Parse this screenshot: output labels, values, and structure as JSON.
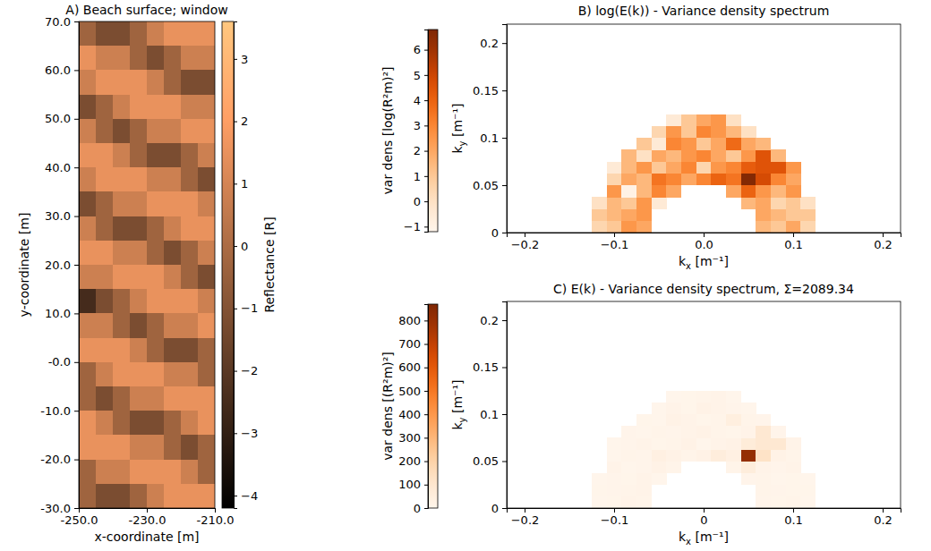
{
  "chart_data": [
    {
      "type": "heatmap",
      "title": "A) Beach surface; window",
      "x_label": "x-coordinate [m]",
      "y_label": "y-coordinate [m]",
      "x_edges": [
        -250,
        -245,
        -240,
        -235,
        -230,
        -225,
        -220,
        -215,
        -210
      ],
      "y_edges": [
        70,
        65,
        60,
        55,
        50,
        45,
        40,
        35,
        30,
        25,
        20,
        15,
        10,
        5,
        0,
        -5,
        -10,
        -15,
        -20,
        -25,
        -30
      ],
      "values": [
        [
          -0.3,
          -1.2,
          -1.2,
          -0.3,
          0.8,
          1.5,
          1.5,
          1.5
        ],
        [
          1.5,
          0.8,
          0.8,
          -0.3,
          -1.2,
          -0.3,
          0.8,
          0.8
        ],
        [
          0.8,
          1.5,
          1.5,
          1.5,
          0.8,
          -0.3,
          -1.2,
          -1.2
        ],
        [
          -1.2,
          -0.3,
          0.8,
          1.5,
          1.5,
          1.5,
          0.8,
          0.8
        ],
        [
          0.8,
          -0.3,
          -1.2,
          -0.3,
          0.8,
          0.8,
          1.5,
          1.5
        ],
        [
          1.5,
          1.5,
          0.8,
          -0.3,
          -1.2,
          -1.2,
          -0.3,
          0.8
        ],
        [
          0.8,
          1.5,
          1.5,
          1.5,
          0.8,
          0.8,
          -0.3,
          -1.2
        ],
        [
          -1.2,
          -0.3,
          0.8,
          0.8,
          1.5,
          1.5,
          1.5,
          0.8
        ],
        [
          0.8,
          -0.3,
          -1.2,
          -1.2,
          -0.3,
          0.8,
          1.5,
          1.5
        ],
        [
          1.5,
          1.5,
          0.8,
          0.8,
          -0.3,
          -1.2,
          -0.3,
          0.8
        ],
        [
          0.8,
          0.8,
          1.5,
          1.5,
          1.5,
          0.8,
          -0.3,
          -1.2
        ],
        [
          -2.5,
          -1.2,
          -0.3,
          0.8,
          1.5,
          1.5,
          1.5,
          0.8
        ],
        [
          0.8,
          0.8,
          -0.3,
          -1.2,
          -0.3,
          0.8,
          0.8,
          1.5
        ],
        [
          1.5,
          1.5,
          1.5,
          0.8,
          -0.3,
          -1.2,
          -1.2,
          -0.3
        ],
        [
          -0.3,
          0.8,
          1.5,
          1.5,
          1.5,
          0.8,
          0.8,
          -0.3
        ],
        [
          -0.3,
          -1.2,
          -0.3,
          0.8,
          0.8,
          1.5,
          1.5,
          1.5
        ],
        [
          1.5,
          0.8,
          -0.3,
          -1.2,
          -1.2,
          -0.3,
          0.8,
          1.5
        ],
        [
          1.5,
          1.5,
          1.5,
          0.8,
          0.8,
          -0.3,
          -1.2,
          -0.3
        ],
        [
          -0.3,
          0.8,
          0.8,
          1.5,
          1.5,
          1.5,
          0.8,
          -0.3
        ],
        [
          -0.3,
          -1.2,
          -1.2,
          -0.3,
          0.8,
          1.5,
          1.5,
          1.5
        ]
      ],
      "xlim": [
        -250,
        -210
      ],
      "ylim": [
        -30,
        70
      ],
      "xticks": [
        {
          "value": -250,
          "label": "-250.0"
        },
        {
          "value": -230,
          "label": "-230.0"
        },
        {
          "value": -210,
          "label": "-210.0"
        }
      ],
      "yticks": [
        {
          "value": 70,
          "label": "70.0"
        },
        {
          "value": 60,
          "label": "60.0"
        },
        {
          "value": 50,
          "label": "50.0"
        },
        {
          "value": 40,
          "label": "40.0"
        },
        {
          "value": 30,
          "label": "30.0"
        },
        {
          "value": 20,
          "label": "20.0"
        },
        {
          "value": 10,
          "label": "10.0"
        },
        {
          "value": 0,
          "label": "-0.0"
        },
        {
          "value": -10,
          "label": "-10.0"
        },
        {
          "value": -20,
          "label": "-20.0"
        },
        {
          "value": -30,
          "label": "-30.0"
        }
      ],
      "color": "copper",
      "colorbar_label": "Reflectance [R]",
      "clim": [
        -4.2,
        3.6
      ],
      "cticks": [
        3,
        2,
        1,
        0,
        {
          "value": -1,
          "label": "−1"
        },
        {
          "value": -2,
          "label": "−2"
        },
        {
          "value": -3,
          "label": "−3"
        },
        {
          "value": -4,
          "label": "−4"
        }
      ]
    },
    {
      "type": "heatmap",
      "title": "B) log(E(k)) - Variance density spectrum",
      "x_label": "kx [m⁻¹]",
      "y_label": "ky [m⁻¹]",
      "x_edges": [
        -0.125,
        -0.1083,
        -0.0917,
        -0.075,
        -0.0583,
        -0.0417,
        -0.025,
        -0.0083,
        0.0083,
        0.025,
        0.0417,
        0.0583,
        0.075,
        0.0917,
        0.1083,
        0.125
      ],
      "y_edges": [
        0,
        0.0125,
        0.025,
        0.0375,
        0.05,
        0.0625,
        0.075,
        0.0875,
        0.1,
        0.1125,
        0.125
      ],
      "values": [
        [
          0.5,
          1.0,
          2.5,
          2.0,
          null,
          null,
          null,
          null,
          null,
          null,
          null,
          1.5,
          1.0,
          2.0,
          0.5
        ],
        [
          1.0,
          1.5,
          2.0,
          2.5,
          null,
          null,
          null,
          null,
          null,
          null,
          null,
          2.0,
          1.5,
          1.0,
          1.0
        ],
        [
          0.0,
          1.5,
          1.0,
          2.5,
          -0.5,
          null,
          null,
          null,
          null,
          null,
          1.5,
          2.0,
          0.5,
          1.0,
          0.0
        ],
        [
          null,
          2.5,
          -1.0,
          1.5,
          3.0,
          2.0,
          null,
          null,
          null,
          2.0,
          4.0,
          2.5,
          1.5,
          2.5,
          null
        ],
        [
          null,
          0.5,
          2.0,
          1.5,
          3.5,
          3.0,
          2.0,
          3.0,
          4.0,
          3.5,
          6.7,
          4.8,
          3.0,
          2.0,
          null
        ],
        [
          null,
          -0.5,
          1.5,
          2.5,
          1.0,
          2.0,
          3.0,
          0.5,
          2.5,
          3.0,
          4.2,
          4.5,
          4.5,
          2.5,
          null
        ],
        [
          null,
          null,
          1.5,
          0.0,
          2.0,
          1.5,
          2.5,
          3.0,
          2.0,
          1.0,
          2.5,
          4.5,
          1.5,
          null,
          null
        ],
        [
          null,
          null,
          null,
          1.0,
          -0.5,
          3.0,
          2.5,
          1.0,
          2.0,
          3.8,
          2.0,
          1.5,
          null,
          null,
          null
        ],
        [
          null,
          null,
          null,
          null,
          0.5,
          2.5,
          1.0,
          3.0,
          2.5,
          1.5,
          0.0,
          null,
          null,
          null,
          null
        ],
        [
          null,
          null,
          null,
          null,
          null,
          -0.5,
          1.0,
          2.0,
          2.5,
          0.0,
          null,
          null,
          null,
          null,
          null
        ]
      ],
      "xlim": [
        -0.22,
        0.22
      ],
      "ylim": [
        0,
        0.22
      ],
      "xticks": [
        {
          "value": -0.2,
          "label": "−0.2"
        },
        {
          "value": -0.1,
          "label": "−0.1"
        },
        {
          "value": 0,
          "label": "0.0"
        },
        0.1,
        0.2
      ],
      "yticks": [
        0,
        0.05,
        0.1,
        0.15,
        0.2
      ],
      "color": "Oranges",
      "colorbar_label": "var dens [log(R²m)²]",
      "clim": [
        -1.2,
        6.8
      ],
      "cticks": [
        {
          "value": -1,
          "label": "−1"
        },
        0,
        1,
        2,
        3,
        4,
        5,
        6
      ]
    },
    {
      "type": "heatmap",
      "title": "C) E(k) - Variance density spectrum, Σ=2089.34",
      "x_label": "kx [m⁻¹]",
      "y_label": "ky [m⁻¹]",
      "x_edges": [
        -0.125,
        -0.1083,
        -0.0917,
        -0.075,
        -0.0583,
        -0.0417,
        -0.025,
        -0.0083,
        0.0083,
        0.025,
        0.0417,
        0.0583,
        0.075,
        0.0917,
        0.1083,
        0.125
      ],
      "y_edges": [
        0,
        0.0125,
        0.025,
        0.0375,
        0.05,
        0.0625,
        0.075,
        0.0875,
        0.1,
        0.1125,
        0.125
      ],
      "values": [
        [
          1.6,
          2.7,
          12.2,
          7.4,
          null,
          null,
          null,
          null,
          null,
          null,
          null,
          4.5,
          2.7,
          7.4,
          1.6
        ],
        [
          2.7,
          4.5,
          7.4,
          12.2,
          null,
          null,
          null,
          null,
          null,
          null,
          null,
          7.4,
          4.5,
          2.7,
          2.7
        ],
        [
          1.0,
          4.5,
          2.7,
          12.2,
          0.6,
          null,
          null,
          null,
          null,
          null,
          4.5,
          7.4,
          1.6,
          2.7,
          1.0
        ],
        [
          null,
          12.2,
          0.4,
          4.5,
          20.1,
          7.4,
          null,
          null,
          null,
          7.4,
          54.6,
          12.2,
          4.5,
          12.2,
          null
        ],
        [
          null,
          1.6,
          7.4,
          4.5,
          33.1,
          20.1,
          7.4,
          20.1,
          54.6,
          33.1,
          812.4,
          121.5,
          20.1,
          7.4,
          null
        ],
        [
          null,
          0.6,
          4.5,
          12.2,
          2.7,
          7.4,
          20.1,
          1.6,
          12.2,
          20.1,
          66.7,
          90.0,
          90.0,
          12.2,
          null
        ],
        [
          null,
          null,
          4.5,
          1.0,
          7.4,
          4.5,
          12.2,
          20.1,
          7.4,
          2.7,
          12.2,
          90.0,
          4.5,
          null,
          null
        ],
        [
          null,
          null,
          null,
          2.7,
          0.6,
          20.1,
          12.2,
          2.7,
          7.4,
          44.7,
          7.4,
          4.5,
          null,
          null,
          null
        ],
        [
          null,
          null,
          null,
          null,
          1.6,
          12.2,
          2.7,
          20.1,
          12.2,
          4.5,
          1.0,
          null,
          null,
          null,
          null
        ],
        [
          null,
          null,
          null,
          null,
          null,
          0.6,
          2.7,
          7.4,
          12.2,
          1.0,
          null,
          null,
          null,
          null,
          null
        ]
      ],
      "xlim": [
        -0.22,
        0.22
      ],
      "ylim": [
        0,
        0.22
      ],
      "xticks": [
        {
          "value": -0.2,
          "label": "−0.2"
        },
        {
          "value": -0.1,
          "label": "−0.1"
        },
        0,
        0.1,
        0.2
      ],
      "yticks": [
        0,
        0.05,
        0.1,
        0.15,
        0.2
      ],
      "color": "Oranges",
      "colorbar_label": "var dens [(R²m)²]",
      "clim": [
        0,
        870
      ],
      "cticks": [
        0,
        100,
        200,
        300,
        400,
        500,
        600,
        700,
        800
      ]
    }
  ]
}
